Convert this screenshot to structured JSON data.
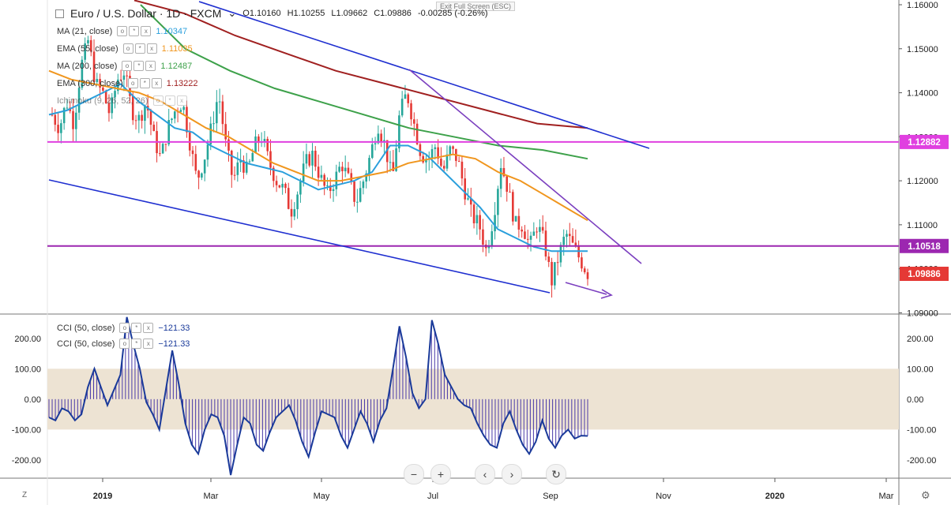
{
  "header": {
    "symbol_title": "Euro / U.S. Dollar · 1D · FXCM",
    "ohlc": {
      "open": "O1.10160",
      "high": "H1.10255",
      "low": "L1.09662",
      "close": "C1.09886",
      "change": "-0.00285 (-0.26%)"
    },
    "exit_fullscreen": "Exit Full Screen (ESC)"
  },
  "indicators": [
    {
      "label": "MA (21, close)",
      "value": "1.10347",
      "color": "#2a9fdc"
    },
    {
      "label": "EMA (55, close)",
      "value": "1.11035",
      "color": "#f0961e"
    },
    {
      "label": "MA (200, close)",
      "value": "1.12487",
      "color": "#3da14a"
    },
    {
      "label": "EMA (300, close)",
      "value": "1.13222",
      "color": "#a02020"
    },
    {
      "label": "Ichimoku (9, 26, 52, 26)",
      "value": "",
      "color": "#888888"
    }
  ],
  "cci_legend": [
    {
      "label": "CCI (50, close)",
      "value": "−121.33",
      "color": "#1a3a9a"
    },
    {
      "label": "CCI (50, close)",
      "value": "−121.33",
      "color": "#1a3a9a"
    }
  ],
  "price_badges": {
    "resistance_line": "1.12882",
    "support_line": "1.10518",
    "last_price": "1.09886"
  },
  "navigation": {
    "zoom_out": "−",
    "zoom_in": "+",
    "scroll_left": "‹",
    "scroll_right": "›",
    "reset": "↻"
  },
  "corners": {
    "bottom_left": "Z",
    "bottom_right": "⚙"
  },
  "colors": {
    "up": "#26a69a",
    "down": "#e53935",
    "magenta": "#e040e0",
    "purple": "#9c27b0",
    "channel": "#1f2fd0",
    "cci": "#1a3a9a",
    "band": "#ede3d3"
  },
  "chart_data": [
    {
      "type": "candlestick",
      "title": "Euro / U.S. Dollar, 1D, FXCM",
      "x_ticks": [
        "2019",
        "Mar",
        "May",
        "Jul",
        "Sep",
        "Nov",
        "2020",
        "Mar"
      ],
      "y_ticks": [
        "1.16000",
        "1.15000",
        "1.14000",
        "1.13000",
        "1.12000",
        "1.11000",
        "1.10000",
        "1.09000"
      ],
      "ylim": [
        1.089,
        1.16
      ],
      "close_path": [
        1.135,
        1.132,
        1.138,
        1.133,
        1.146,
        1.152,
        1.142,
        1.14,
        1.135,
        1.143,
        1.145,
        1.136,
        1.134,
        1.138,
        1.13,
        1.125,
        1.132,
        1.136,
        1.138,
        1.129,
        1.12,
        1.125,
        1.132,
        1.14,
        1.128,
        1.12,
        1.125,
        1.122,
        1.128,
        1.13,
        1.124,
        1.12,
        1.118,
        1.113,
        1.118,
        1.124,
        1.126,
        1.121,
        1.117,
        1.12,
        1.124,
        1.12,
        1.115,
        1.12,
        1.126,
        1.133,
        1.128,
        1.12,
        1.135,
        1.14,
        1.133,
        1.126,
        1.125,
        1.128,
        1.122,
        1.127,
        1.125,
        1.118,
        1.112,
        1.11,
        1.104,
        1.112,
        1.124,
        1.118,
        1.11,
        1.11,
        1.105,
        1.11,
        1.106,
        1.097,
        1.103,
        1.108,
        1.105,
        1.102,
        1.099
      ],
      "lines": [
        {
          "name": "MA (21, close)",
          "color": "#2a9fdc",
          "values": [
            1.135,
            1.136,
            1.138,
            1.14,
            1.142,
            1.138,
            1.135,
            1.132,
            1.131,
            1.128,
            1.126,
            1.124,
            1.123,
            1.122,
            1.12,
            1.118,
            1.119,
            1.12,
            1.122,
            1.128,
            1.128,
            1.126,
            1.122,
            1.118,
            1.114,
            1.109,
            1.107,
            1.105,
            1.104,
            1.104,
            1.104
          ]
        },
        {
          "name": "EMA (55, close)",
          "color": "#f0961e",
          "values": [
            1.145,
            1.143,
            1.142,
            1.141,
            1.14,
            1.138,
            1.135,
            1.132,
            1.13,
            1.127,
            1.124,
            1.122,
            1.12,
            1.12,
            1.121,
            1.122,
            1.124,
            1.125,
            1.126,
            1.125,
            1.122,
            1.12,
            1.117,
            1.114,
            1.111
          ]
        },
        {
          "name": "MA (200, close)",
          "color": "#3da14a",
          "values": [
            1.16,
            1.15,
            1.145,
            1.141,
            1.138,
            1.135,
            1.132,
            1.13,
            1.128,
            1.127,
            1.125
          ]
        },
        {
          "name": "EMA (300, close)",
          "color": "#a02020",
          "values": [
            1.161,
            1.158,
            1.153,
            1.149,
            1.145,
            1.142,
            1.139,
            1.136,
            1.133,
            1.132
          ]
        }
      ],
      "horizontal_lines": [
        {
          "value": 1.12882,
          "color": "#e040e0"
        },
        {
          "value": 1.10518,
          "color": "#9c27b0"
        }
      ]
    },
    {
      "type": "line",
      "title": "CCI (50, close)",
      "y_ticks": [
        "200.00",
        "100.00",
        "0.00",
        "-100.00",
        "-200.00"
      ],
      "ylim": [
        -260,
        280
      ],
      "band": [
        -100,
        100
      ],
      "last_value": -121.33,
      "values": [
        -60,
        -70,
        -30,
        -40,
        -70,
        -50,
        40,
        100,
        40,
        -20,
        30,
        80,
        270,
        180,
        100,
        -10,
        -50,
        -100,
        30,
        160,
        50,
        -80,
        -150,
        -180,
        -100,
        -50,
        -60,
        -120,
        -250,
        -150,
        -60,
        -80,
        -150,
        -170,
        -110,
        -60,
        -40,
        -20,
        -70,
        -140,
        -190,
        -110,
        -40,
        -50,
        -60,
        -120,
        -160,
        -100,
        -40,
        -80,
        -140,
        -70,
        -30,
        100,
        240,
        140,
        20,
        -30,
        0,
        260,
        180,
        80,
        40,
        0,
        -20,
        -30,
        -80,
        -120,
        -150,
        -160,
        -80,
        -40,
        -100,
        -150,
        -180,
        -140,
        -70,
        -130,
        -160,
        -120,
        -100,
        -130,
        -120,
        -121
      ]
    }
  ]
}
